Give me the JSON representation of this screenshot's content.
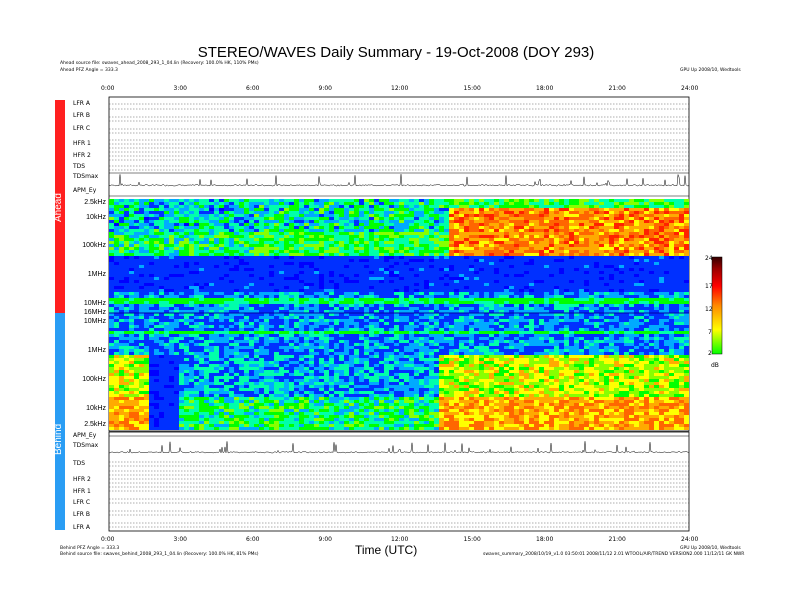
{
  "chart_data": {
    "type": "heatmap",
    "title": "STEREO/WAVES Daily Summary - 19-Oct-2008 (DOY 293)",
    "xlabel": "Time (UTC)",
    "xlim": [
      0,
      24
    ],
    "x_ticks": [
      "0:00",
      "3:00",
      "6:00",
      "9:00",
      "12:00",
      "15:00",
      "18:00",
      "21:00",
      "24:00"
    ],
    "ahead_source": "Ahead source file: swaves_ahead_2008_293_1_04.lin (Recovery: 100.0% HK, 110% PMs)",
    "ahead_pfz": "Ahead PFZ Angle = 333.3",
    "behind_pfz": "Behind PFZ Angle = 333.3",
    "behind_source": "Behind source file: swaves_behind_2008_293_1_04.lin (Recovery: 100.0% HK, 81% PMs)",
    "credit_left": "GPU Up 2008/10, Wedtools",
    "credit_right_bottom": "GPU Up 2008/10, Wedtools",
    "footer_right": "swaves_summary_2008/10/19_v1.0 03:50:01 2008/11/12 2.01 WTOOL/AIR/TREND VERSION2.000 11/12/11 GK NWR",
    "side_labels": {
      "ahead": "Ahead",
      "behind": "Behind"
    },
    "ahead_rows": [
      "LFR A",
      "LFR B",
      "LFR C",
      "HFR 1",
      "HFR 2",
      "TDS",
      "TDSmax",
      "APM_Ey"
    ],
    "behind_rows": [
      "APM_Ey",
      "TDSmax",
      "TDS",
      "HFR 2",
      "HFR 1",
      "LFR C",
      "LFR B",
      "LFR A"
    ],
    "ahead_freq_ticks": [
      "2.5kHz",
      "10kHz",
      "100kHz",
      "1MHz",
      "10MHz",
      "16MHz"
    ],
    "behind_freq_ticks": [
      "10MHz",
      "1MHz",
      "100kHz",
      "10kHz",
      "2.5kHz"
    ],
    "colorbar": {
      "label": "dB",
      "ticks": [
        "24",
        "17",
        "12",
        "7",
        "2"
      ],
      "range": [
        2,
        24
      ]
    },
    "heatmap_description_values": {
      "ahead_event_start_hour": 14,
      "ahead_event_end_hour": 24,
      "behind_event_hours": [
        [
          0,
          2
        ],
        [
          13.5,
          24
        ]
      ]
    }
  }
}
